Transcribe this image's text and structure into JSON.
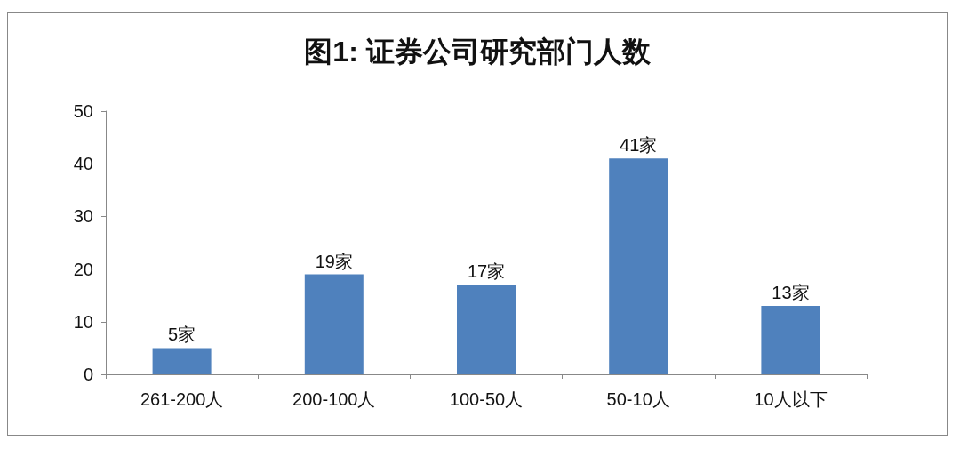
{
  "chart_data": {
    "type": "bar",
    "title": "图1: 证券公司研究部门人数",
    "categories": [
      "261-200人",
      "200-100人",
      "100-50人",
      "50-10人",
      "10人以下"
    ],
    "values": [
      5,
      19,
      17,
      41,
      13
    ],
    "value_labels": [
      "5家",
      "19家",
      "17家",
      "41家",
      "13家"
    ],
    "color": "#4f81bd",
    "ylim": [
      0,
      50
    ],
    "yticks": [
      0,
      10,
      20,
      30,
      40,
      50
    ]
  }
}
